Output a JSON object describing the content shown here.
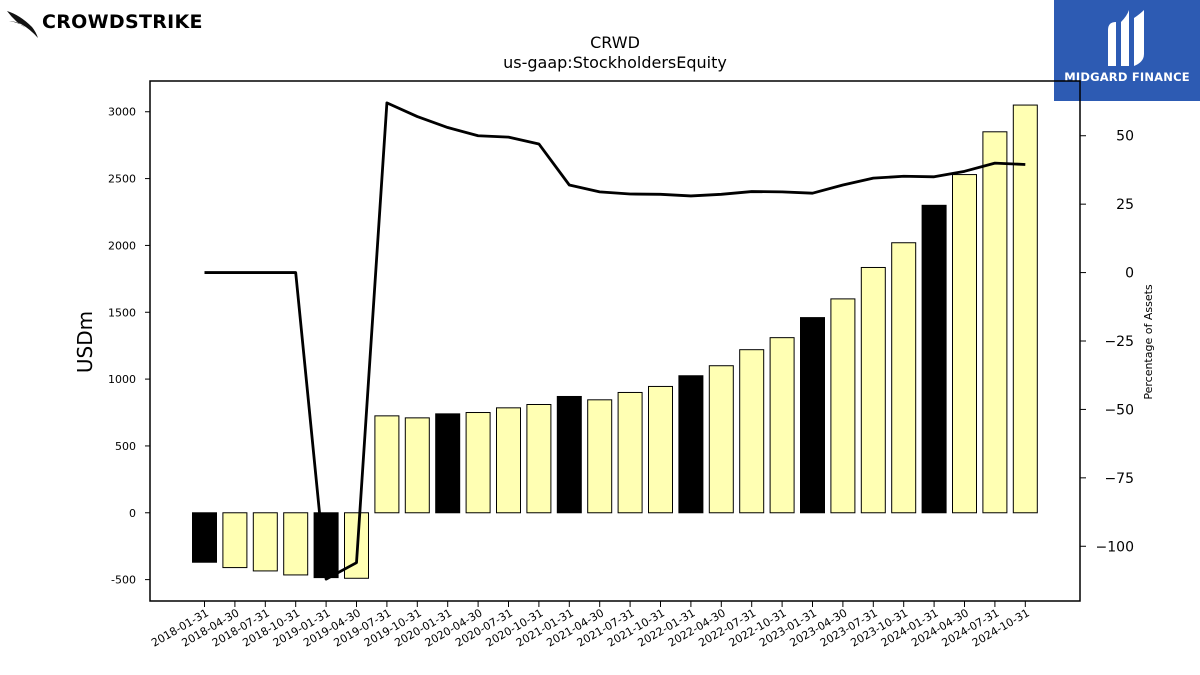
{
  "brand": {
    "left_logo_text": "CROWDSTRIKE",
    "right_logo_text": "MIDGARD FINANCE",
    "right_logo_bg": "#2d5bb3"
  },
  "chart_data": {
    "type": "bar",
    "title": "CRWD",
    "subtitle": "us-gaap:StockholdersEquity",
    "ylabel": "USDm",
    "y2label": "Percentage of Assets",
    "ylim": [
      -660,
      3230
    ],
    "y2lim": [
      -120,
      70
    ],
    "yticks": [
      -500,
      0,
      500,
      1000,
      1500,
      2000,
      2500,
      3000
    ],
    "y2ticks": [
      -100,
      -75,
      -50,
      -25,
      0,
      25,
      50
    ],
    "categories": [
      "2018-01-31",
      "2018-04-30",
      "2018-07-31",
      "2018-10-31",
      "2019-01-31",
      "2019-04-30",
      "2019-07-31",
      "2019-10-31",
      "2020-01-31",
      "2020-04-30",
      "2020-07-31",
      "2020-10-31",
      "2021-01-31",
      "2021-04-30",
      "2021-07-31",
      "2021-10-31",
      "2022-01-31",
      "2022-04-30",
      "2022-07-31",
      "2022-10-31",
      "2023-01-31",
      "2023-04-30",
      "2023-07-31",
      "2023-10-31",
      "2024-01-31",
      "2024-04-30",
      "2024-07-31",
      "2024-10-31"
    ],
    "series": [
      {
        "kind": "bar",
        "values": [
          -370,
          -410,
          -435,
          -465,
          -485,
          -490,
          725,
          710,
          740,
          750,
          785,
          810,
          870,
          845,
          900,
          945,
          1025,
          1100,
          1220,
          1310,
          1460,
          1600,
          1835,
          2020,
          2300,
          2530,
          2850,
          3050
        ],
        "colors": [
          "#000000",
          "#ffffb3",
          "#ffffb3",
          "#ffffb3",
          "#000000",
          "#ffffb3",
          "#ffffb3",
          "#ffffb3",
          "#000000",
          "#ffffb3",
          "#ffffb3",
          "#ffffb3",
          "#000000",
          "#ffffb3",
          "#ffffb3",
          "#ffffb3",
          "#000000",
          "#ffffb3",
          "#ffffb3",
          "#ffffb3",
          "#000000",
          "#ffffb3",
          "#ffffb3",
          "#ffffb3",
          "#000000",
          "#ffffb3",
          "#ffffb3",
          "#ffffb3"
        ]
      },
      {
        "kind": "line",
        "axis": "right",
        "color": "#000000",
        "values": [
          0,
          0,
          0,
          0,
          -112,
          -106,
          62,
          57,
          53,
          50,
          49.5,
          47,
          32,
          29.5,
          28.7,
          28.6,
          28,
          28.6,
          29.6,
          29.5,
          29,
          32,
          34.5,
          35.2,
          35,
          37,
          40,
          39.5
        ]
      }
    ]
  }
}
